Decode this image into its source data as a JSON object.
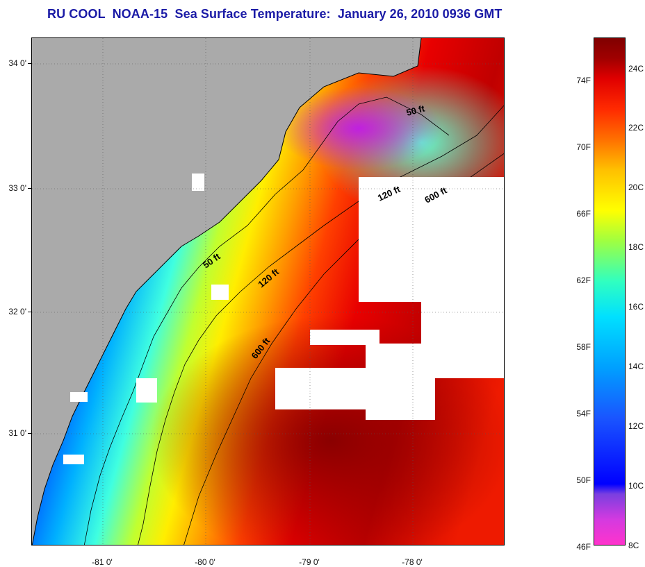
{
  "title": "RU COOL  NOAA-15  Sea Surface Temperature:  January 26, 2010 0936 GMT",
  "map": {
    "lat_labels": [
      "34 0'",
      "33 0'",
      "32 0'",
      "31 0'"
    ],
    "lon_labels": [
      "-81 0'",
      "-80 0'",
      "-79 0'",
      "-78 0'"
    ],
    "isobath_labels": [
      "50 ft",
      "120 ft",
      "600 ft",
      "50 ft",
      "120 ft",
      "600 ft"
    ],
    "colors": {
      "land": "#aaaaaa",
      "cloud": "#ffffff",
      "coast_line": "#000000"
    }
  },
  "colorbar": {
    "fahrenheit_labels": [
      "74F",
      "70F",
      "66F",
      "62F",
      "58F",
      "54F",
      "50F",
      "46F"
    ],
    "celsius_labels": [
      "24C",
      "22C",
      "20C",
      "18C",
      "16C",
      "14C",
      "12C",
      "10C",
      "8C"
    ]
  }
}
